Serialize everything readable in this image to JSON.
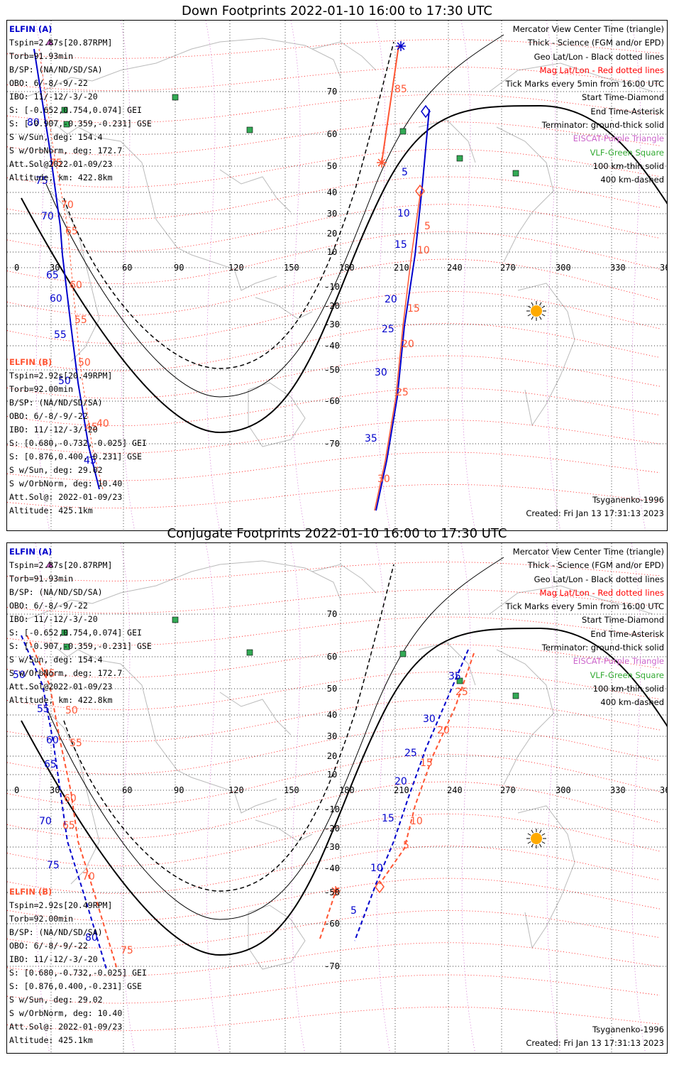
{
  "panels": [
    {
      "title": "Down Footprints 2022-01-10 16:00 to 17:30 UTC",
      "orientation": "down"
    },
    {
      "title": "Conjugate Footprints 2022-01-10 16:00 to 17:30 UTC",
      "orientation": "conjugate"
    }
  ],
  "sat_a": {
    "name": "ELFIN (A)",
    "lines": [
      "Tspin=2.87s[20.87RPM]",
      "Torb=91.93min",
      "B/SP: (NA/ND/SD/SA)",
      "OBO: 6/-8/-9/-22",
      "IBO: 11/-12/-3/-20",
      "S: [-0.652,0.754,0.074] GEI",
      "S: [-0.907,-0.359,-0.231] GSE",
      "S w/Sun, deg: 154.4",
      "S w/OrbNorm, deg: 172.7",
      "Att.Sol@2022-01-09/23",
      "Altitude, km: 422.8km"
    ]
  },
  "sat_b": {
    "name": "ELFIN (B)",
    "lines": [
      "Tspin=2.92s[20.49RPM]",
      "Torb=92.00min",
      "B/SP: (NA/ND/SD/SA)",
      "OBO: 6/-8/-9/-22",
      "IBO: 11/-12/-3/-20",
      "S: [0.680,-0.732,-0.025] GEI",
      "S: [0.876,0.400,-0.231] GSE",
      "S w/Sun, deg: 29.02",
      "S w/OrbNorm, deg: 10.40",
      "Att.Sol@: 2022-01-09/23",
      "Altitude: 425.1km"
    ]
  },
  "legend": {
    "lines": [
      {
        "text": "Mercator View Center Time (triangle)",
        "color": "#000000"
      },
      {
        "text": "Thick - Science (FGM and/or EPD)",
        "color": "#000000"
      },
      {
        "text": "Geo Lat/Lon - Black dotted lines",
        "color": "#000000"
      },
      {
        "text": "Mag Lat/Lon - Red dotted lines",
        "color": "#ff0000"
      },
      {
        "text": "Tick Marks every 5min from 16:00 UTC",
        "color": "#000000"
      },
      {
        "text": "Start Time-Diamond",
        "color": "#000000"
      },
      {
        "text": "End Time-Asterisk",
        "color": "#000000"
      },
      {
        "text": "Terminator: ground-thick solid",
        "color": "#000000"
      },
      {
        "text": "EISCAT-Purple Triangle",
        "color": "#cc66cc"
      },
      {
        "text": "VLF-Green Square",
        "color": "#33aa33"
      },
      {
        "text": "100 km-thin solid",
        "color": "#000000"
      },
      {
        "text": "400 km-dashed",
        "color": "#000000"
      }
    ]
  },
  "footer": {
    "model": "Tsyganenko-1996",
    "created": "Created: Fri Jan 13 17:31:13 2023"
  },
  "map": {
    "lon_ticks": [
      "0",
      "30",
      "60",
      "90",
      "120",
      "150",
      "180",
      "210",
      "240",
      "270",
      "300",
      "330",
      "360"
    ],
    "lat_ticks": [
      "70",
      "60",
      "50",
      "40",
      "30",
      "20",
      "10",
      "-10",
      "-20",
      "-30",
      "-40",
      "-50",
      "-60",
      "-70"
    ]
  },
  "colors": {
    "sat_a": "#0000cc",
    "sat_b": "#ff5533",
    "mag_grid": "#ff0000",
    "eiscat": "#cc66cc",
    "vlf": "#33aa55",
    "sun": "#ffaa00",
    "coast": "#bbbbbb"
  },
  "down_tick_labels": {
    "a": [
      "80",
      "75",
      "70",
      "65",
      "60",
      "55",
      "50",
      "45",
      "5",
      "10",
      "15",
      "20",
      "25",
      "30",
      "35"
    ],
    "b": [
      "75",
      "70",
      "65",
      "60",
      "55",
      "50",
      "45",
      "40",
      "85",
      "5",
      "10",
      "15",
      "20",
      "25",
      "30"
    ]
  },
  "conj_tick_labels": {
    "a": [
      "50",
      "55",
      "60",
      "65",
      "70",
      "75",
      "80",
      "35",
      "30",
      "25",
      "20",
      "15",
      "10",
      "5"
    ],
    "b": [
      "45",
      "50",
      "55",
      "60",
      "65",
      "70",
      "75",
      "25",
      "20",
      "15",
      "10",
      "5"
    ]
  }
}
